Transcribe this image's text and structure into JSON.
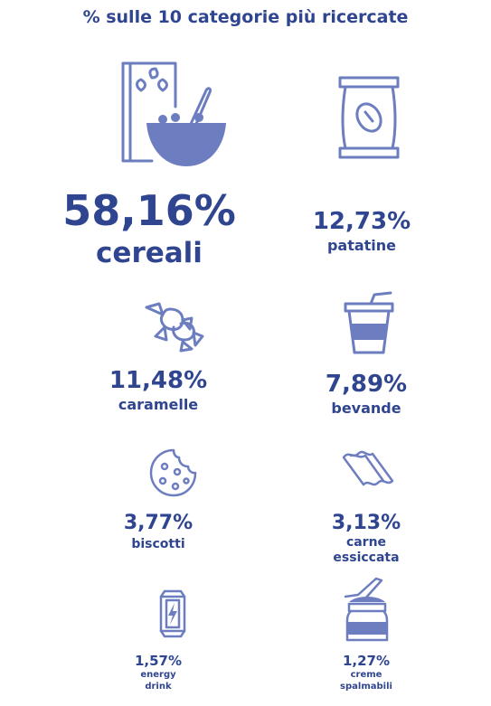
{
  "title": "% sulle 10 categorie più ricercate",
  "colors": {
    "text": "#2f4590",
    "icon": "#6d7ec0"
  },
  "items": [
    {
      "value": "58,16%",
      "label": "cereali",
      "icon": "cereal-box-bowl-icon"
    },
    {
      "value": "12,73%",
      "label": "patatine",
      "icon": "chips-bag-icon"
    },
    {
      "value": "11,48%",
      "label": "caramelle",
      "icon": "candy-icon"
    },
    {
      "value": "7,89%",
      "label": "bevande",
      "icon": "drink-cup-icon"
    },
    {
      "value": "3,77%",
      "label": "biscotti",
      "icon": "cookie-icon"
    },
    {
      "value": "3,13%",
      "label": "carne essiccata",
      "label_lines": [
        "carne",
        "essiccata"
      ],
      "icon": "bacon-icon"
    },
    {
      "value": "1,57%",
      "label": "energy drink",
      "label_lines": [
        "energy",
        "drink"
      ],
      "icon": "energy-drink-can-icon"
    },
    {
      "value": "1,27%",
      "label": "creme spalmabili",
      "label_lines": [
        "creme",
        "spalmabili"
      ],
      "icon": "spread-jar-knife-icon"
    }
  ],
  "chart_data": {
    "type": "table",
    "title": "% sulle 10 categorie più ricercate",
    "categories": [
      "cereali",
      "patatine",
      "caramelle",
      "bevande",
      "biscotti",
      "carne essiccata",
      "energy drink",
      "creme spalmabili"
    ],
    "values": [
      58.16,
      12.73,
      11.48,
      7.89,
      3.77,
      3.13,
      1.57,
      1.27
    ],
    "unit": "%"
  }
}
